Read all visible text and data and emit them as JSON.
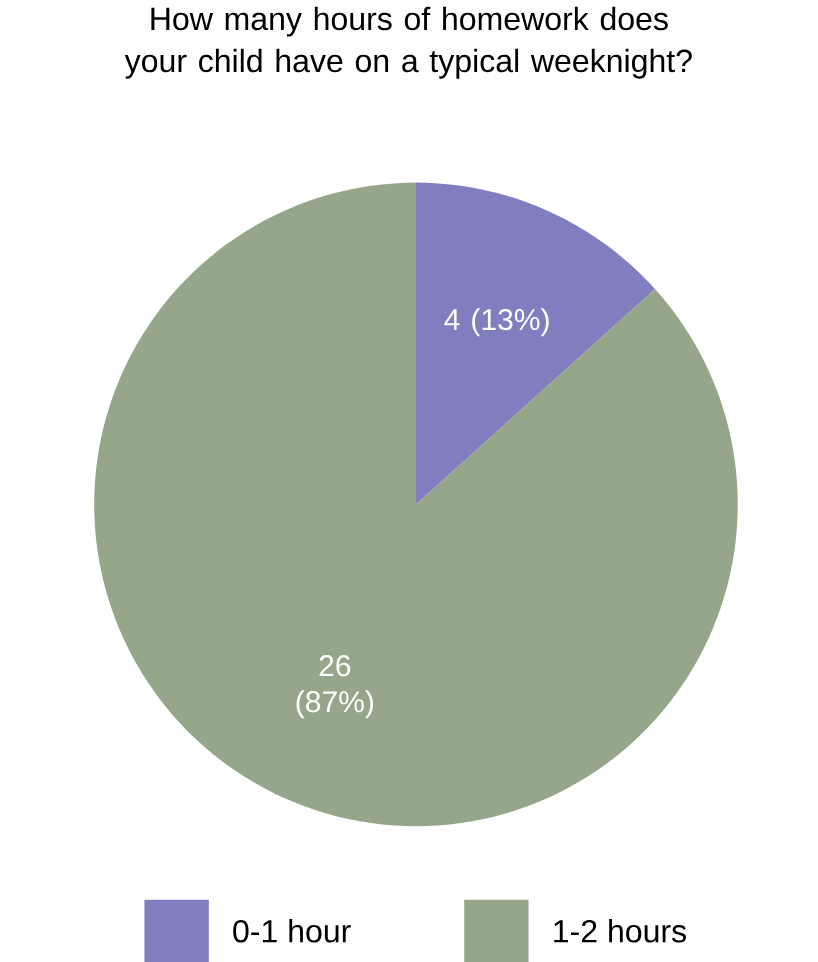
{
  "chart_data": {
    "type": "pie",
    "title": "How many hours of homework does your child have on a typical weeknight?",
    "categories": [
      "0-1 hour",
      "1-2 hours"
    ],
    "values": [
      4,
      26
    ],
    "colors": [
      "#7f7fbf",
      "#96a68a"
    ],
    "value_labels": [
      "4 (13%)",
      "26 (87%)"
    ],
    "legend": "bottom"
  }
}
